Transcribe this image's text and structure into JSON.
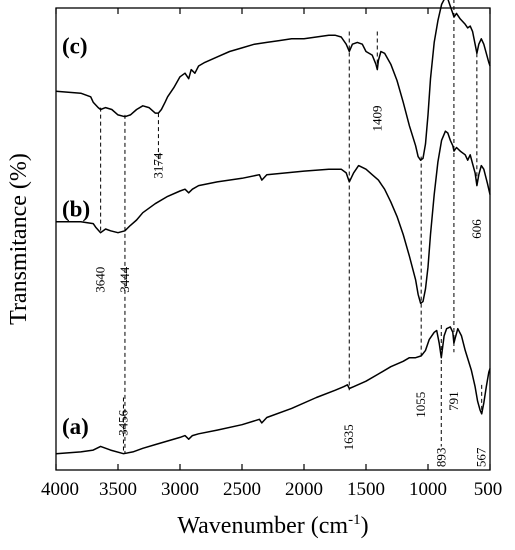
{
  "chart_data": {
    "type": "line",
    "title": "",
    "xlabel": "Wavenumber (cm",
    "xlabel_sup": "-1",
    "xlabel_close": ")",
    "ylabel": "Transmitance (%)",
    "xlim": [
      4000,
      500
    ],
    "x_reversed": true,
    "x_ticks": [
      4000,
      3500,
      3000,
      2500,
      2000,
      1500,
      1000,
      500
    ],
    "y_tick_labels": false,
    "grid": false,
    "series": [
      {
        "name": "(a)",
        "x": [
          4000,
          3800,
          3700,
          3640,
          3560,
          3456,
          3380,
          3300,
          3200,
          3100,
          3000,
          2960,
          2930,
          2900,
          2850,
          2700,
          2500,
          2360,
          2340,
          2300,
          2100,
          1900,
          1750,
          1680,
          1650,
          1635,
          1600,
          1500,
          1400,
          1300,
          1200,
          1150,
          1100,
          1055,
          1020,
          990,
          950,
          930,
          910,
          893,
          870,
          850,
          820,
          800,
          791,
          780,
          760,
          730,
          700,
          650,
          620,
          600,
          580,
          567,
          550,
          530,
          510,
          500
        ],
        "y": [
          0.09,
          0.1,
          0.11,
          0.13,
          0.11,
          0.09,
          0.1,
          0.12,
          0.14,
          0.16,
          0.18,
          0.19,
          0.17,
          0.19,
          0.2,
          0.22,
          0.25,
          0.28,
          0.26,
          0.29,
          0.34,
          0.4,
          0.44,
          0.46,
          0.47,
          0.45,
          0.46,
          0.49,
          0.53,
          0.57,
          0.6,
          0.62,
          0.62,
          0.63,
          0.66,
          0.72,
          0.76,
          0.77,
          0.7,
          0.62,
          0.74,
          0.78,
          0.79,
          0.76,
          0.7,
          0.73,
          0.78,
          0.74,
          0.66,
          0.55,
          0.46,
          0.38,
          0.33,
          0.31,
          0.37,
          0.46,
          0.54,
          0.56
        ]
      },
      {
        "name": "(b)",
        "x": [
          4000,
          3800,
          3700,
          3680,
          3640,
          3600,
          3560,
          3500,
          3444,
          3400,
          3350,
          3300,
          3200,
          3100,
          3000,
          2960,
          2930,
          2900,
          2850,
          2700,
          2500,
          2360,
          2340,
          2300,
          2000,
          1800,
          1700,
          1660,
          1635,
          1600,
          1560,
          1500,
          1450,
          1400,
          1350,
          1300,
          1250,
          1200,
          1150,
          1100,
          1080,
          1060,
          1040,
          1020,
          1000,
          980,
          950,
          920,
          890,
          860,
          840,
          820,
          800,
          790,
          770,
          740,
          700,
          680,
          660,
          640,
          620,
          606,
          590,
          570,
          550,
          520,
          500
        ],
        "y": [
          1.37,
          1.37,
          1.36,
          1.34,
          1.31,
          1.33,
          1.32,
          1.31,
          1.32,
          1.35,
          1.38,
          1.42,
          1.47,
          1.51,
          1.54,
          1.55,
          1.53,
          1.55,
          1.57,
          1.59,
          1.61,
          1.63,
          1.6,
          1.63,
          1.65,
          1.66,
          1.66,
          1.64,
          1.59,
          1.64,
          1.68,
          1.66,
          1.63,
          1.6,
          1.55,
          1.48,
          1.4,
          1.3,
          1.18,
          1.05,
          0.97,
          0.92,
          0.93,
          1.0,
          1.12,
          1.3,
          1.52,
          1.7,
          1.82,
          1.87,
          1.86,
          1.82,
          1.79,
          1.76,
          1.78,
          1.76,
          1.74,
          1.71,
          1.74,
          1.69,
          1.64,
          1.57,
          1.63,
          1.68,
          1.66,
          1.58,
          1.52
        ]
      },
      {
        "name": "(c)",
        "x": [
          4000,
          3800,
          3720,
          3700,
          3660,
          3640,
          3600,
          3550,
          3500,
          3444,
          3400,
          3350,
          3300,
          3250,
          3200,
          3174,
          3150,
          3120,
          3100,
          3050,
          3000,
          2960,
          2930,
          2910,
          2880,
          2850,
          2800,
          2700,
          2600,
          2500,
          2400,
          2300,
          2200,
          2100,
          2000,
          1900,
          1800,
          1750,
          1700,
          1660,
          1635,
          1610,
          1570,
          1530,
          1500,
          1450,
          1420,
          1409,
          1400,
          1380,
          1350,
          1300,
          1250,
          1200,
          1150,
          1100,
          1080,
          1060,
          1040,
          1020,
          1000,
          980,
          950,
          920,
          890,
          860,
          840,
          820,
          800,
          790,
          770,
          740,
          700,
          680,
          660,
          640,
          620,
          606,
          590,
          570,
          550,
          530,
          510,
          500
        ],
        "y": [
          2.09,
          2.08,
          2.06,
          2.03,
          2.0,
          1.99,
          2.0,
          1.99,
          1.96,
          1.95,
          1.96,
          1.99,
          2.01,
          2.0,
          1.97,
          1.97,
          1.99,
          2.03,
          2.06,
          2.11,
          2.17,
          2.19,
          2.16,
          2.21,
          2.19,
          2.23,
          2.25,
          2.28,
          2.31,
          2.33,
          2.35,
          2.36,
          2.37,
          2.38,
          2.38,
          2.39,
          2.4,
          2.4,
          2.39,
          2.35,
          2.31,
          2.35,
          2.36,
          2.35,
          2.31,
          2.29,
          2.24,
          2.21,
          2.26,
          2.31,
          2.3,
          2.24,
          2.15,
          2.03,
          1.9,
          1.79,
          1.73,
          1.71,
          1.72,
          1.8,
          1.96,
          2.16,
          2.36,
          2.48,
          2.57,
          2.61,
          2.6,
          2.56,
          2.52,
          2.5,
          2.52,
          2.49,
          2.46,
          2.44,
          2.45,
          2.42,
          2.35,
          2.3,
          2.35,
          2.38,
          2.35,
          2.3,
          2.25,
          2.23
        ]
      }
    ],
    "series_labels": [
      {
        "series": "(a)",
        "text": "(a)"
      },
      {
        "series": "(b)",
        "text": "(b)"
      },
      {
        "series": "(c)",
        "text": "(c)"
      }
    ],
    "annotations": [
      {
        "x": 3640,
        "label": "3640",
        "y_top": 2.0,
        "y_bottom": 1.31,
        "label_y": 1.05
      },
      {
        "x": 3444,
        "label": "3444",
        "y_top": 1.96,
        "y_bottom": 0.09,
        "label_y": 1.05
      },
      {
        "x": 3456,
        "label": "3456",
        "y_top": 0.4,
        "y_bottom": 0.09,
        "label_y": 0.26
      },
      {
        "x": 3174,
        "label": "3174",
        "y_top": 1.97,
        "y_bottom": 1.68,
        "label_y": 1.68
      },
      {
        "x": 1635,
        "label": "1635",
        "y_top": 2.42,
        "y_bottom": 0.44,
        "label_y": 0.18
      },
      {
        "x": 1409,
        "label": "1409",
        "y_top": 2.42,
        "y_bottom": 2.21,
        "label_y": 1.94
      },
      {
        "x": 1055,
        "label": "1055",
        "y_top": 1.73,
        "y_bottom": 0.63,
        "label_y": 0.36
      },
      {
        "x": 893,
        "label": "893",
        "y_top": 0.8,
        "y_bottom": 0.13,
        "label_y": 0.07
      },
      {
        "x": 791,
        "label": "791",
        "y_top": 2.6,
        "y_bottom": 0.65,
        "label_y": 0.38
      },
      {
        "x": 606,
        "label": "606",
        "y_top": 2.3,
        "y_bottom": 1.57,
        "label_y": 1.33
      },
      {
        "x": 567,
        "label": "567",
        "y_top": 0.47,
        "y_bottom": 0.31,
        "label_y": 0.07
      }
    ]
  }
}
